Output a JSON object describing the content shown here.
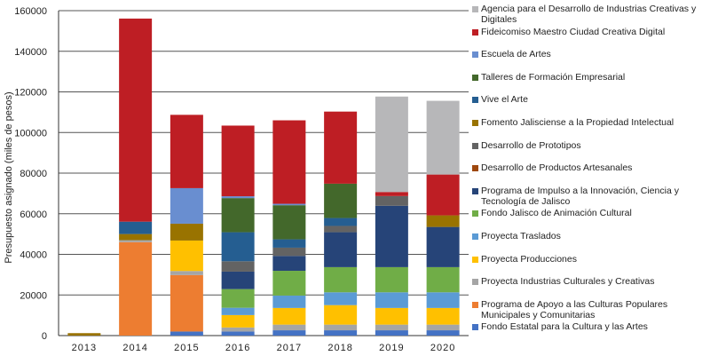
{
  "chart_data": {
    "type": "bar",
    "stacked": true,
    "title": "",
    "xlabel": "",
    "ylabel": "Presupuesto asignado (miles de pesos)",
    "ylim": [
      0,
      160000
    ],
    "yticks": [
      "0",
      "20000",
      "40000",
      "60000",
      "80000",
      "100000",
      "120000",
      "140000",
      "160000"
    ],
    "grid": true,
    "legend_position": "right",
    "categories": [
      "2013",
      "2014",
      "2015",
      "2016",
      "2017",
      "2018",
      "2019",
      "2020"
    ],
    "series": [
      {
        "name": "Fondo Estatal para la Cultura y las Artes",
        "color": "#4472c4",
        "values": [
          0,
          0,
          2000,
          2000,
          2600,
          2600,
          2600,
          2600
        ]
      },
      {
        "name": "Programa de Apoyo a las Culturas Populares Municipales y Comunitarias",
        "color": "#ed7d31",
        "values": [
          0,
          46000,
          27800,
          0,
          0,
          0,
          0,
          0
        ]
      },
      {
        "name": "Proyecta Industrias Culturales y Creativas",
        "color": "#a5a5a5",
        "values": [
          0,
          1000,
          2000,
          2000,
          2800,
          2800,
          2800,
          2800
        ]
      },
      {
        "name": "Proyecta Producciones",
        "color": "#ffc000",
        "values": [
          0,
          0,
          15000,
          6100,
          8200,
          9600,
          8200,
          8200
        ]
      },
      {
        "name": "Proyecta Traslados",
        "color": "#5b9bd5",
        "values": [
          0,
          0,
          0,
          3600,
          6100,
          6300,
          7700,
          7700
        ]
      },
      {
        "name": "Fondo Jalisco de Animación Cultural",
        "color": "#70ad47",
        "values": [
          0,
          0,
          0,
          9200,
          12200,
          12400,
          12400,
          12400
        ]
      },
      {
        "name": "Programa de Impulso a la Innovación, Ciencia y Tecnología de Jalisco",
        "color": "#264478",
        "values": [
          0,
          0,
          0,
          8600,
          7300,
          17200,
          30200,
          19800
        ]
      },
      {
        "name": "Desarrollo de Productos Artesanales",
        "color": "#9e480e",
        "values": [
          0,
          0,
          0,
          0,
          0,
          0,
          0,
          0
        ]
      },
      {
        "name": "Desarrollo de Prototipos",
        "color": "#636363",
        "values": [
          0,
          0,
          0,
          5100,
          4100,
          3100,
          4800,
          0
        ]
      },
      {
        "name": "Fomento Jalisciense a la Propiedad Intelectual",
        "color": "#997300",
        "values": [
          1200,
          3000,
          8300,
          0,
          0,
          0,
          0,
          5700
        ]
      },
      {
        "name": "Vive el Arte",
        "color": "#255e91",
        "values": [
          0,
          6100,
          0,
          14300,
          4100,
          3900,
          0,
          0
        ]
      },
      {
        "name": "Talleres de Formación Empresarial",
        "color": "#43682b",
        "values": [
          0,
          0,
          0,
          16800,
          16800,
          16900,
          0,
          0
        ]
      },
      {
        "name": "Escuela de Artes",
        "color": "#698ed0",
        "values": [
          0,
          0,
          17500,
          900,
          700,
          0,
          0,
          0
        ]
      },
      {
        "name": "Fideicomiso Maestro Ciudad Creativa Digital",
        "color": "#be1e24",
        "values": [
          0,
          100000,
          36100,
          34800,
          41100,
          35500,
          2000,
          20100
        ]
      },
      {
        "name": "Agencia para el Desarrollo de Industrias Creativas y Digitales",
        "color": "#b7b7b9",
        "values": [
          0,
          0,
          0,
          0,
          0,
          0,
          47000,
          36300
        ]
      }
    ]
  }
}
